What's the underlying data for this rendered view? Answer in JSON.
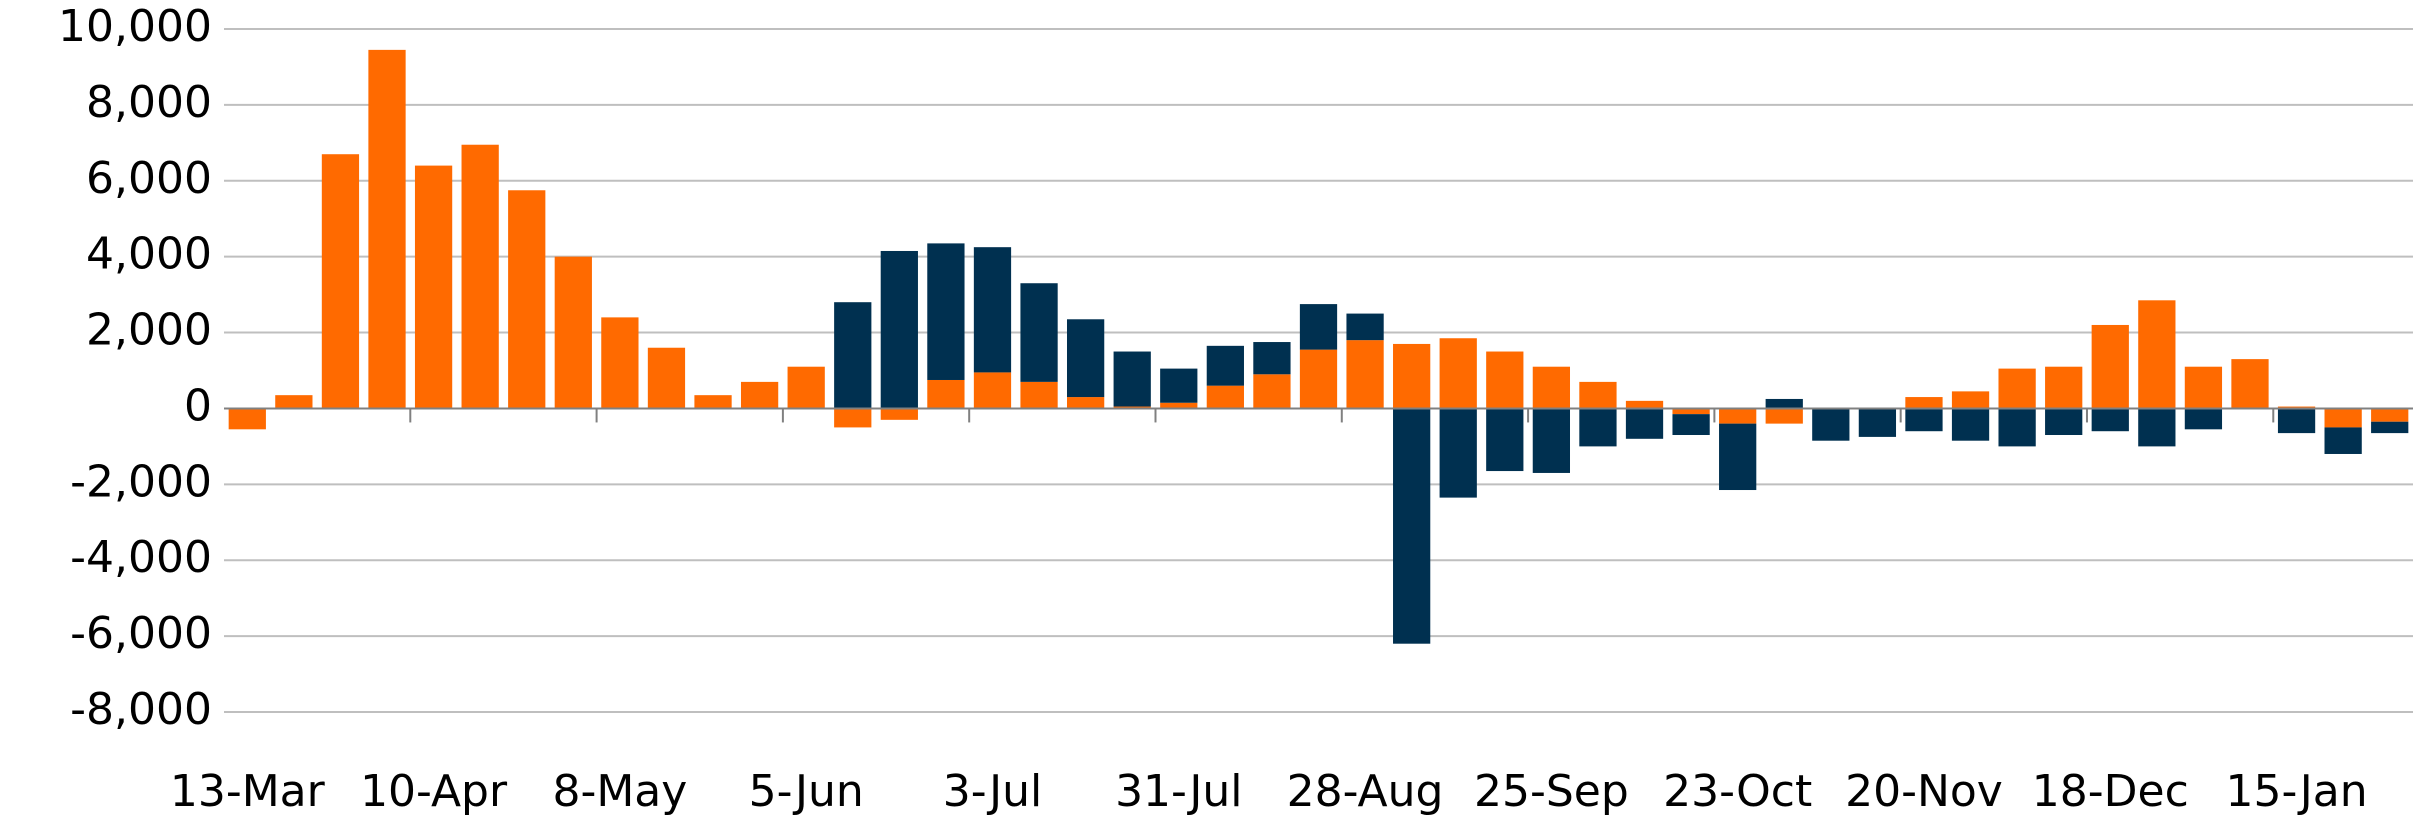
{
  "chart_data": {
    "type": "stacked-bar",
    "categories": [
      "13-Mar",
      null,
      null,
      null,
      "10-Apr",
      null,
      null,
      null,
      "8-May",
      null,
      null,
      null,
      "5-Jun",
      null,
      null,
      null,
      "3-Jul",
      null,
      null,
      null,
      "31-Jul",
      null,
      null,
      null,
      "28-Aug",
      null,
      null,
      null,
      "25-Sep",
      null,
      null,
      null,
      "23-Oct",
      null,
      null,
      null,
      "20-Nov",
      null,
      null,
      null,
      "18-Dec",
      null,
      null,
      null,
      "15-Jan",
      null,
      null
    ],
    "series": [
      {
        "color": "#ff6a00",
        "values": [
          -550,
          350,
          6700,
          9450,
          6400,
          6950,
          5750,
          4000,
          2400,
          1600,
          350,
          700,
          1100,
          -500,
          -300,
          750,
          950,
          700,
          300,
          50,
          150,
          600,
          900,
          1550,
          1800,
          1700,
          1850,
          1500,
          1100,
          700,
          200,
          -150,
          -400,
          -400,
          0,
          0,
          300,
          450,
          1050,
          1100,
          2200,
          2850,
          1100,
          1300,
          50,
          -500,
          -350
        ]
      },
      {
        "color": "#003050",
        "values": [
          0,
          0,
          0,
          0,
          0,
          0,
          0,
          0,
          0,
          0,
          0,
          0,
          0,
          2800,
          4150,
          3600,
          3300,
          2600,
          2050,
          1450,
          900,
          1050,
          850,
          1200,
          700,
          -6200,
          -2350,
          -1650,
          -1700,
          -1000,
          -800,
          -550,
          -1750,
          250,
          -850,
          -750,
          -600,
          -850,
          -1000,
          -700,
          -600,
          -1000,
          -550,
          0,
          -650,
          -700,
          -300
        ]
      }
    ],
    "ylim": [
      -8000,
      10000
    ],
    "yticks": [
      {
        "value": -8000,
        "label": "-8,000"
      },
      {
        "value": -6000,
        "label": "-6,000"
      },
      {
        "value": -4000,
        "label": "-4,000"
      },
      {
        "value": -2000,
        "label": "-2,000"
      },
      0,
      {
        "value": 2000,
        "label": "2,000"
      },
      {
        "value": 4000,
        "label": "4,000"
      },
      {
        "value": 6000,
        "label": "6,000"
      },
      {
        "value": 8000,
        "label": "8,000"
      },
      {
        "value": 10000,
        "label": "10,000"
      }
    ],
    "grid": true
  }
}
